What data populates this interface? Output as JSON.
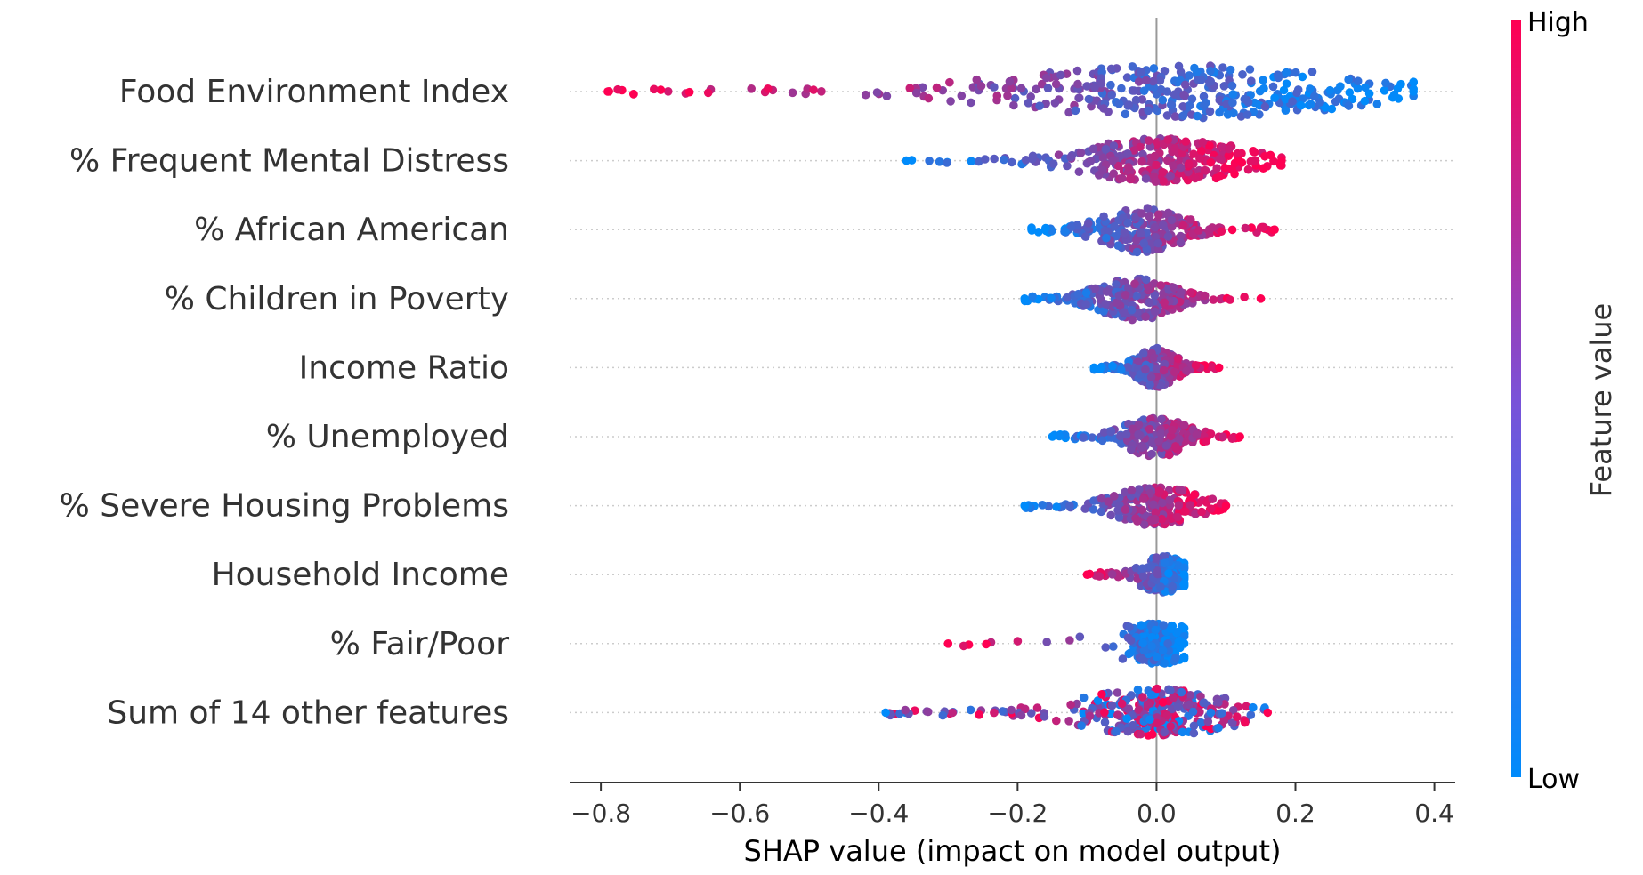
{
  "chart_data": {
    "type": "scatter",
    "subtype": "shap-beeswarm",
    "xlabel": "SHAP value (impact on model output)",
    "xticks": [
      -0.8,
      -0.6,
      -0.4,
      -0.2,
      0.0,
      0.2,
      0.4
    ],
    "xtick_labels": [
      "−0.8",
      "−0.6",
      "−0.4",
      "−0.2",
      "0.0",
      "0.2",
      "0.4"
    ],
    "xlim": [
      -0.845,
      0.43
    ],
    "zero_line": 0.0,
    "colorbar": {
      "title": "Feature value",
      "high_label": "High",
      "low_label": "Low",
      "low_color": "#008bfb",
      "high_color": "#ff0052"
    },
    "grid": "dotted horizontal per feature",
    "features": [
      {
        "name": "Food Environment Index",
        "min": -0.79,
        "max": 0.37,
        "center": 0.04,
        "spread": 0.16,
        "height": 1.0,
        "density": 900,
        "low_side": "right"
      },
      {
        "name": "% Frequent Mental Distress",
        "min": -0.36,
        "max": 0.18,
        "center": 0.01,
        "spread": 0.07,
        "height": 0.85,
        "density": 700,
        "low_side": "left"
      },
      {
        "name": "% African American",
        "min": -0.18,
        "max": 0.17,
        "center": -0.02,
        "spread": 0.05,
        "height": 0.85,
        "density": 600,
        "low_side": "left"
      },
      {
        "name": "% Children in Poverty",
        "min": -0.19,
        "max": 0.15,
        "center": -0.03,
        "spread": 0.05,
        "height": 0.8,
        "density": 600,
        "low_side": "left"
      },
      {
        "name": "Income Ratio",
        "min": -0.09,
        "max": 0.09,
        "center": 0.0,
        "spread": 0.03,
        "height": 0.75,
        "density": 550,
        "low_side": "left"
      },
      {
        "name": "% Unemployed",
        "min": -0.15,
        "max": 0.12,
        "center": 0.0,
        "spread": 0.04,
        "height": 0.75,
        "density": 550,
        "low_side": "left"
      },
      {
        "name": "% Severe Housing Problems",
        "min": -0.19,
        "max": 0.1,
        "center": 0.0,
        "spread": 0.04,
        "height": 0.75,
        "density": 550,
        "low_side": "left"
      },
      {
        "name": "Household Income",
        "min": -0.1,
        "max": 0.04,
        "center": 0.01,
        "spread": 0.02,
        "height": 0.7,
        "density": 500,
        "low_side": "right"
      },
      {
        "name": "% Fair/Poor",
        "min": -0.3,
        "max": 0.04,
        "center": 0.0,
        "spread": 0.02,
        "height": 0.75,
        "density": 500,
        "low_side": "right"
      },
      {
        "name": "Sum of 14 other features",
        "min": -0.39,
        "max": 0.16,
        "center": 0.0,
        "spread": 0.05,
        "height": 0.9,
        "density": 800,
        "low_side": "mixed"
      }
    ]
  }
}
